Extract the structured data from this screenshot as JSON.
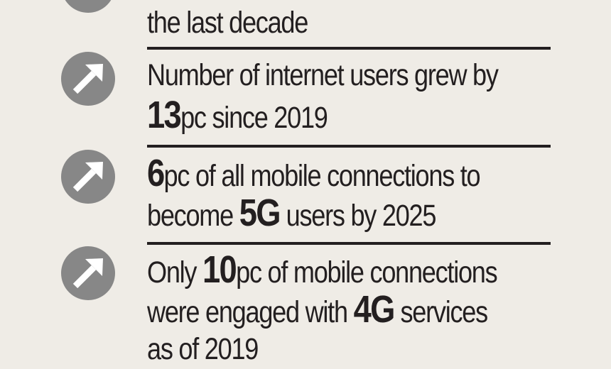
{
  "theme": {
    "background": "#efece6",
    "text_color": "#231f20",
    "icon_fill": "#878787",
    "icon_arrow": "#ffffff",
    "divider_color": "#231f20"
  },
  "icon_name": "arrow-up-right-circle-icon",
  "items": [
    {
      "line1": [
        "the last decade"
      ],
      "line2": []
    },
    {
      "line1": [
        "Number of internet users grew by"
      ],
      "line2_bold": "13",
      "line2_rest": "pc since 2019"
    },
    {
      "line1_bold": "6",
      "line1_rest": "pc of all mobile connections to",
      "line2_pre": "become ",
      "line2_bold": "5G",
      "line2_rest": " users by 2025"
    },
    {
      "line1_pre": "Only ",
      "line1_bold": "10",
      "line1_rest": "pc of mobile connections",
      "line2_pre": "were engaged with ",
      "line2_bold": "4G",
      "line2_rest": " services",
      "line3": "as of 2019"
    }
  ]
}
